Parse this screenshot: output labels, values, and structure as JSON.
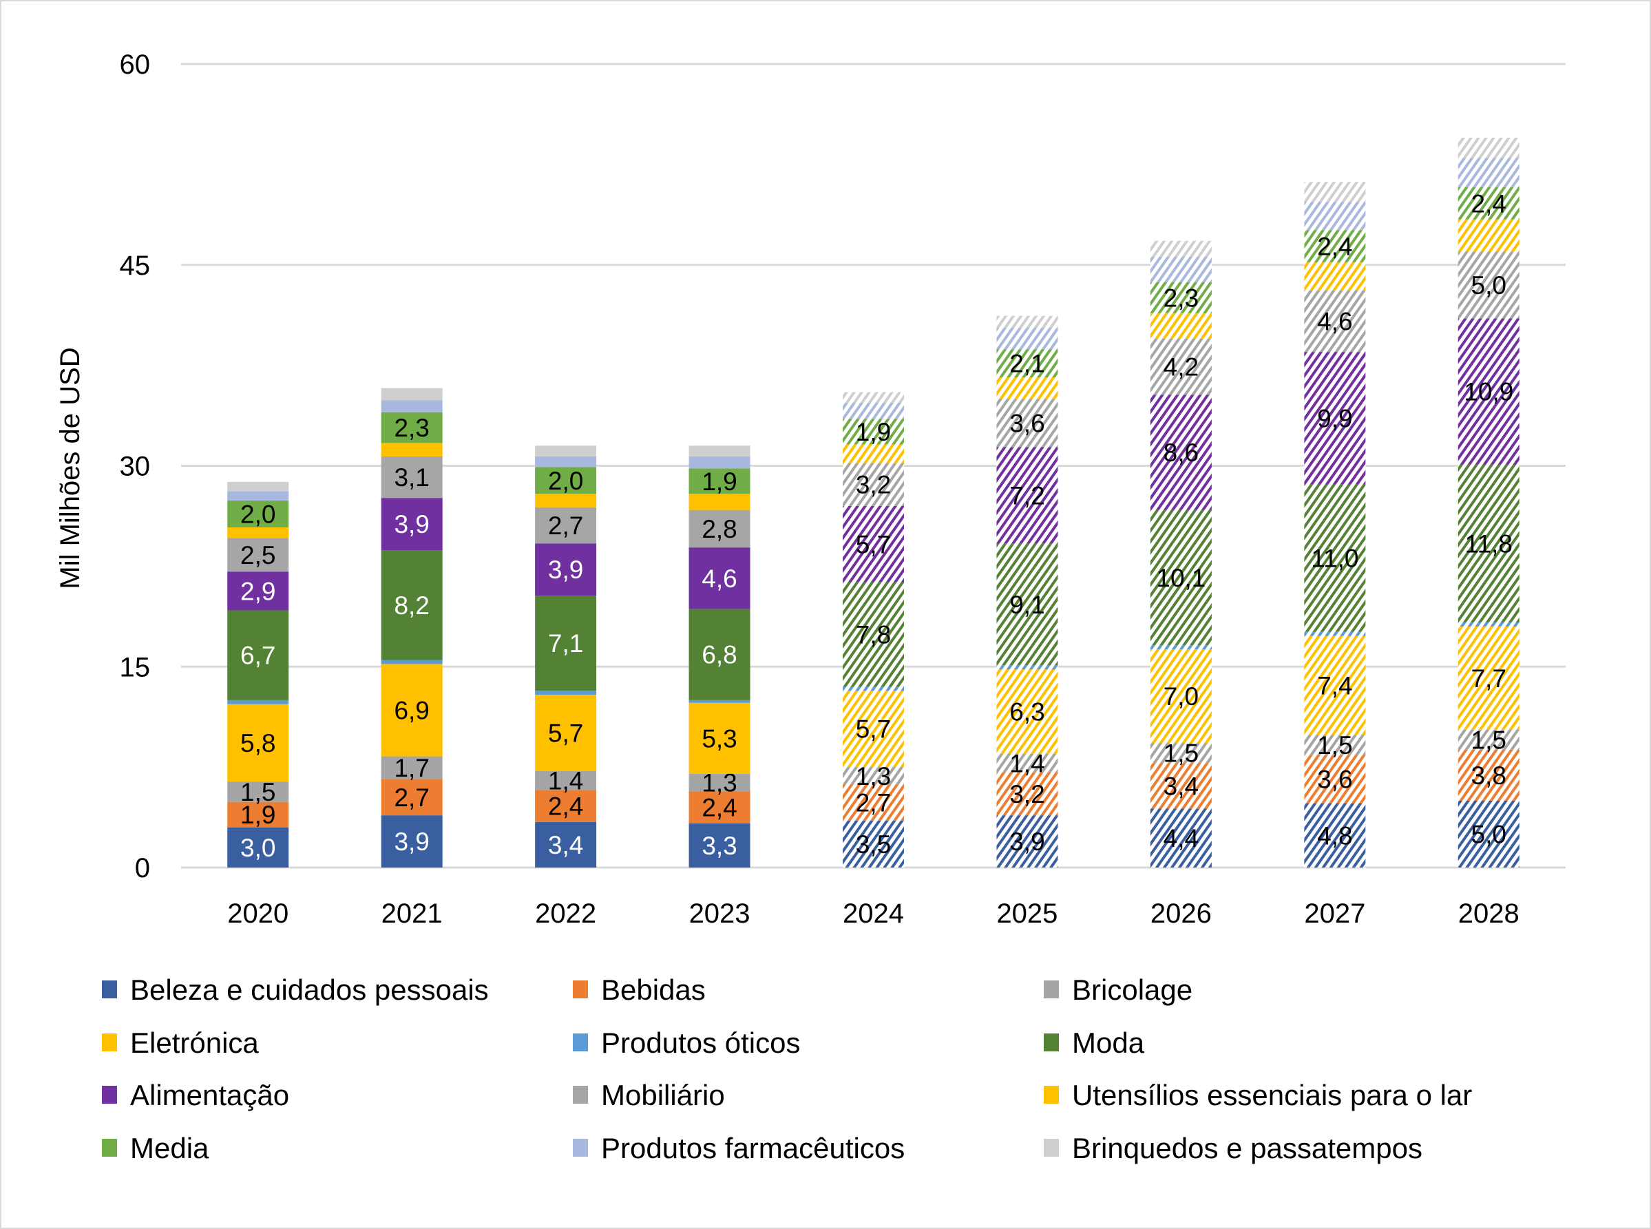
{
  "chart_data": {
    "type": "bar",
    "stacked": true,
    "title": "",
    "xlabel": "",
    "ylabel": "Mil Milhões de USD",
    "ylim": [
      0,
      60
    ],
    "yticks": [
      0,
      15,
      30,
      45,
      60
    ],
    "ytick_labels": [
      "0",
      "15",
      "30",
      "45",
      "60"
    ],
    "grid": "horizontal",
    "legend_position": "bottom",
    "categories": [
      "2020",
      "2021",
      "2022",
      "2023",
      "2024",
      "2025",
      "2026",
      "2027",
      "2028"
    ],
    "forecast_categories": [
      "2024",
      "2025",
      "2026",
      "2027",
      "2028"
    ],
    "forecast_style": "hatched",
    "series": [
      {
        "name": "Beleza e cuidados pessoais",
        "color": "#3A5FA0",
        "labeled": true,
        "values": [
          3.0,
          3.9,
          3.4,
          3.3,
          3.5,
          3.9,
          4.4,
          4.8,
          5.0
        ]
      },
      {
        "name": "Bebidas",
        "color": "#ED7D31",
        "labeled": true,
        "values": [
          1.9,
          2.7,
          2.4,
          2.4,
          2.7,
          3.2,
          3.4,
          3.6,
          3.8
        ]
      },
      {
        "name": "Bricolage",
        "color": "#A5A5A5",
        "labeled": true,
        "values": [
          1.5,
          1.7,
          1.4,
          1.3,
          1.3,
          1.4,
          1.5,
          1.5,
          1.5
        ]
      },
      {
        "name": "Eletrónica",
        "color": "#FFC000",
        "labeled": true,
        "values": [
          5.8,
          6.9,
          5.7,
          5.3,
          5.7,
          6.3,
          7.0,
          7.4,
          7.7
        ]
      },
      {
        "name": "Produtos óticos",
        "color": "#5B9BD5",
        "labeled": false,
        "values": [
          0.3,
          0.3,
          0.3,
          0.2,
          0.3,
          0.3,
          0.3,
          0.3,
          0.3
        ]
      },
      {
        "name": "Moda",
        "color": "#548235",
        "labeled": true,
        "values": [
          6.7,
          8.2,
          7.1,
          6.8,
          7.8,
          9.1,
          10.1,
          11.0,
          11.8
        ]
      },
      {
        "name": "Alimentação",
        "color": "#7030A0",
        "labeled": true,
        "values": [
          2.9,
          3.9,
          3.9,
          4.6,
          5.7,
          7.2,
          8.6,
          9.9,
          10.9
        ]
      },
      {
        "name": "Mobiliário",
        "color": "#A6A6A6",
        "labeled": true,
        "values": [
          2.5,
          3.1,
          2.7,
          2.8,
          3.2,
          3.6,
          4.2,
          4.6,
          5.0
        ]
      },
      {
        "name": "Utensílios essenciais para o lar",
        "color": "#FFC000",
        "labeled": false,
        "values": [
          0.8,
          1.0,
          1.0,
          1.2,
          1.4,
          1.6,
          1.9,
          2.1,
          2.4
        ]
      },
      {
        "name": "Media",
        "color": "#70AD47",
        "labeled": true,
        "values": [
          2.0,
          2.3,
          2.0,
          1.9,
          1.9,
          2.1,
          2.3,
          2.4,
          2.4
        ]
      },
      {
        "name": "Produtos farmacêuticos",
        "color": "#A9B8DF",
        "labeled": false,
        "values": [
          0.7,
          0.9,
          0.8,
          0.9,
          1.2,
          1.6,
          1.9,
          2.1,
          2.2
        ]
      },
      {
        "name": "Brinquedos e passatempos",
        "color": "#CFCFCF",
        "labeled": false,
        "values": [
          0.7,
          0.9,
          0.8,
          0.8,
          0.8,
          0.9,
          1.2,
          1.5,
          1.5
        ]
      }
    ]
  }
}
